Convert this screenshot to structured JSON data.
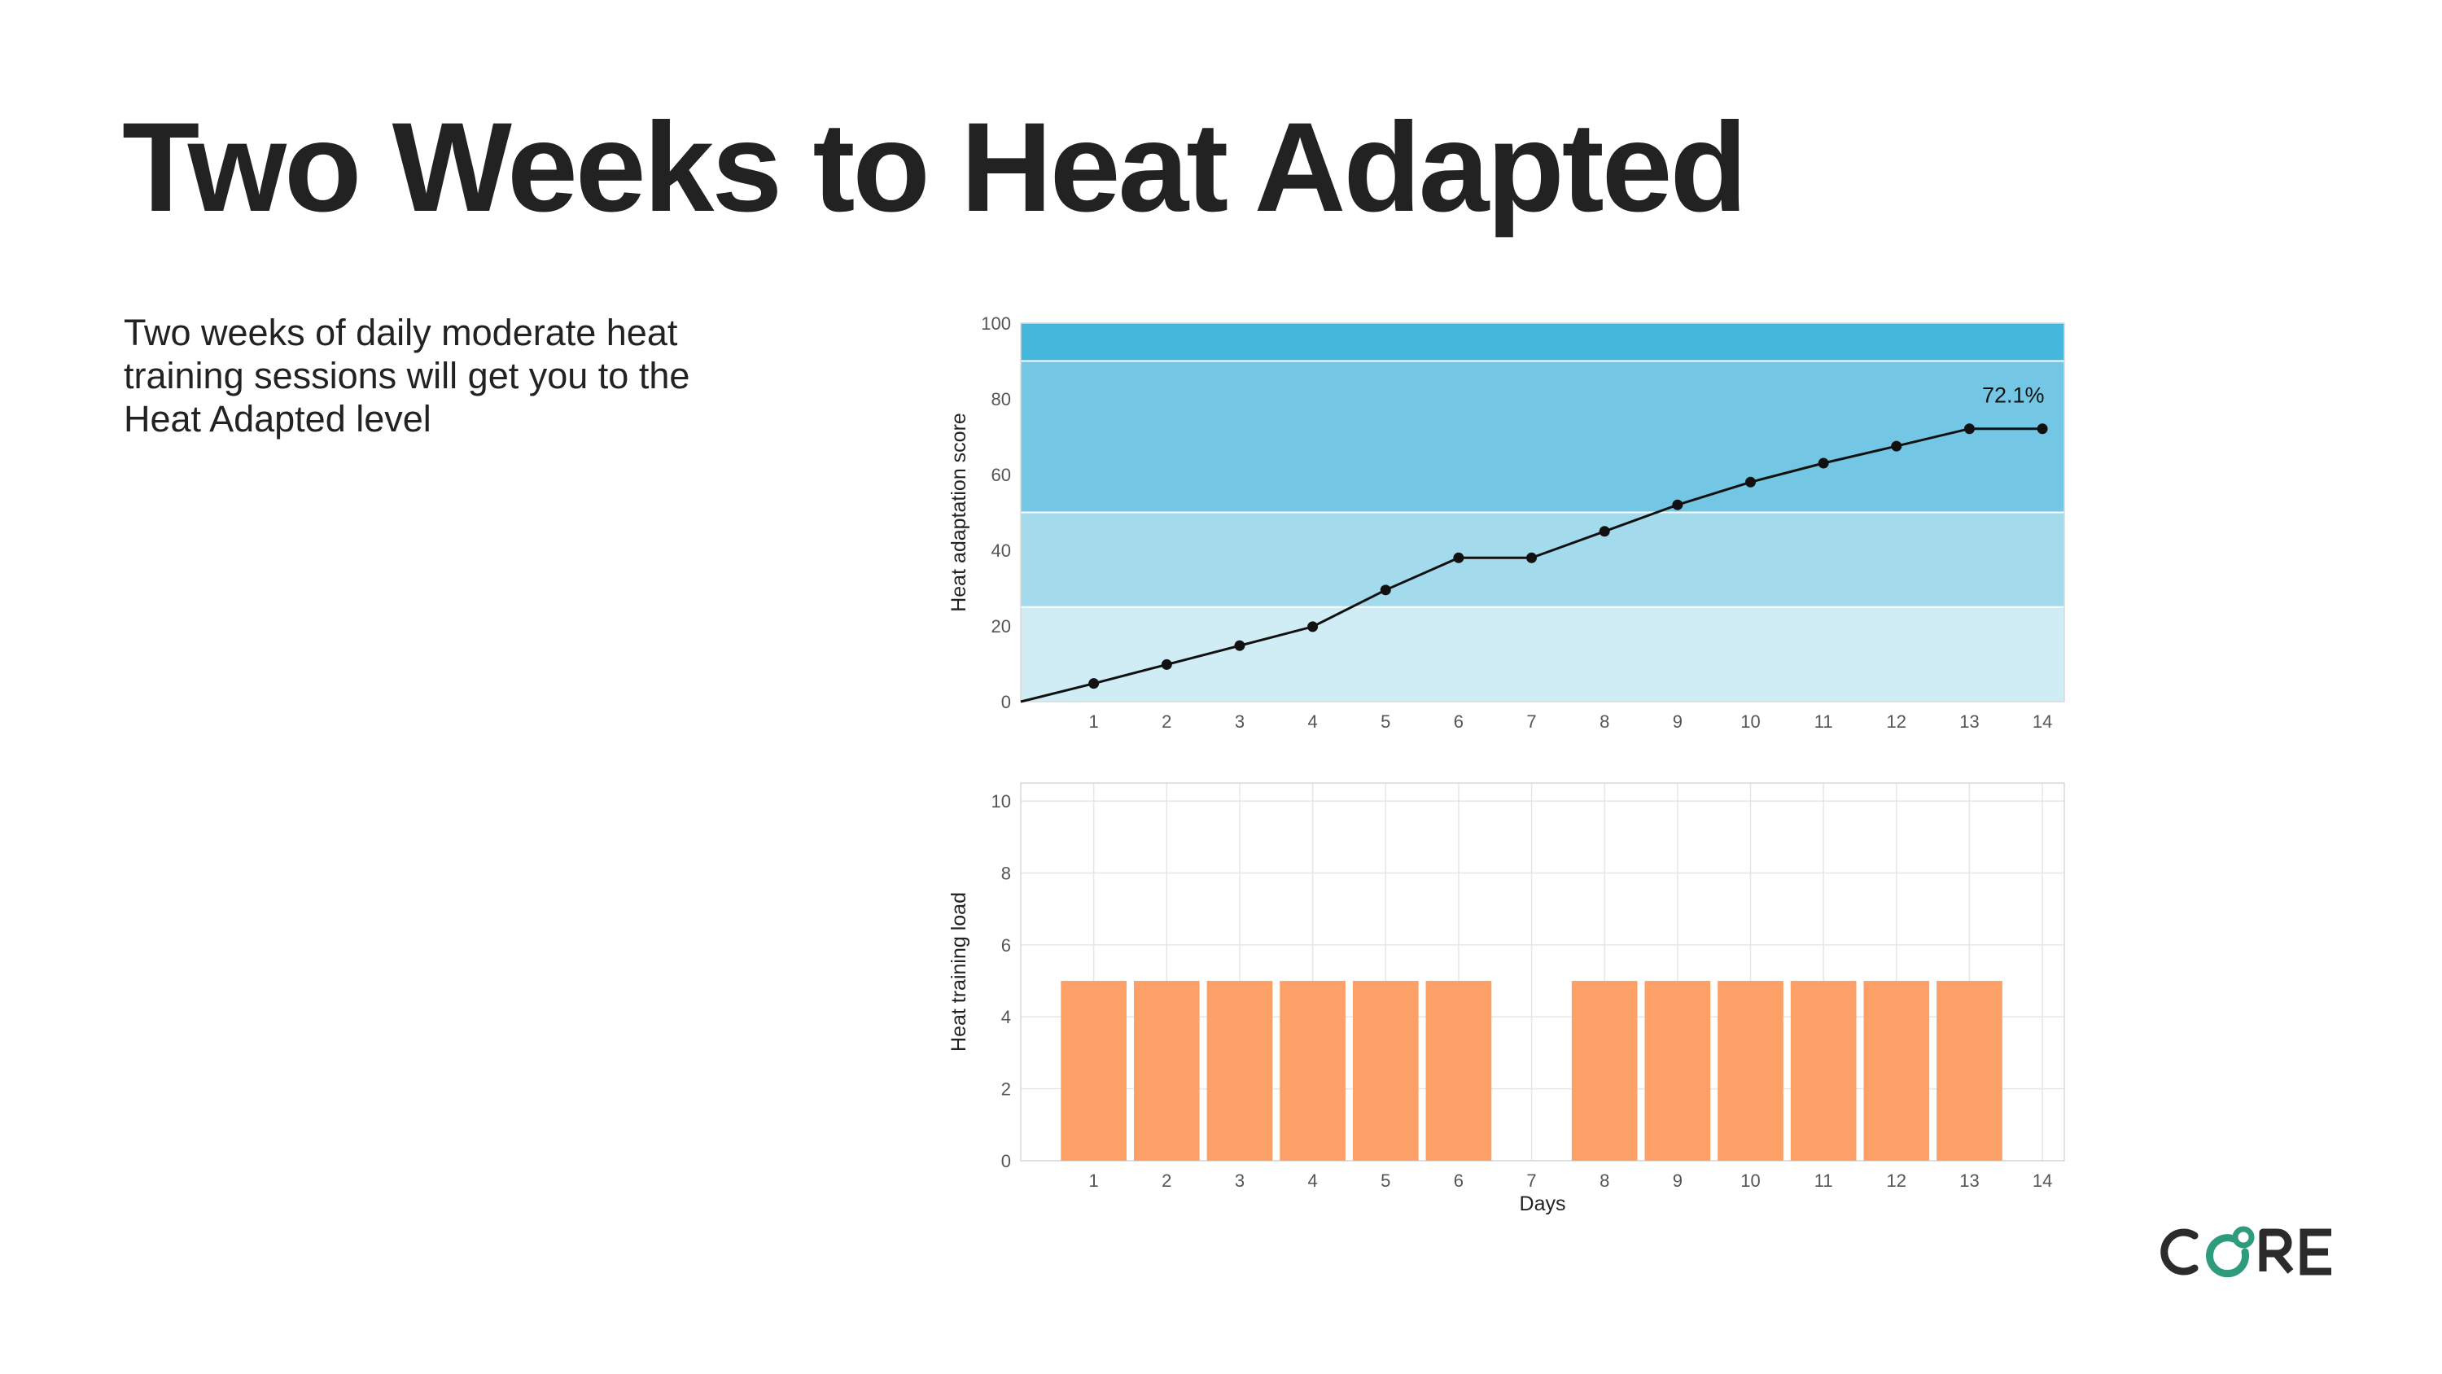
{
  "header": {
    "title": "Two Weeks to Heat Adapted",
    "description": "Two weeks of daily moderate heat training sessions will get you to the Heat Adapted level"
  },
  "brand": {
    "logo_text": "CORE",
    "dark_color": "#2b2b2b",
    "accent_color": "#2e9b7c"
  },
  "chart_data": [
    {
      "type": "line",
      "title": "",
      "xlabel": "",
      "ylabel": "Heat adaptation score",
      "x": [
        0,
        1,
        2,
        3,
        4,
        5,
        6,
        7,
        8,
        9,
        10,
        11,
        12,
        13,
        14
      ],
      "x_tick_labels": [
        "1",
        "2",
        "3",
        "4",
        "5",
        "6",
        "7",
        "8",
        "9",
        "10",
        "11",
        "12",
        "13",
        "14"
      ],
      "y_tick_labels": [
        "0",
        "20",
        "40",
        "60",
        "80",
        "100"
      ],
      "series": [
        {
          "name": "Heat adaptation score",
          "values": [
            0,
            4.8,
            9.8,
            14.8,
            19.8,
            29.5,
            38,
            38,
            45,
            52,
            58,
            63,
            67.5,
            72.1,
            72.1
          ],
          "color": "#111111"
        }
      ],
      "xlim": [
        0,
        14.3
      ],
      "ylim": [
        0,
        100
      ],
      "bands": [
        {
          "from": 0,
          "to": 25,
          "color": "#d0ecf4"
        },
        {
          "from": 25,
          "to": 50,
          "color": "#a3dbed"
        },
        {
          "from": 50,
          "to": 90,
          "color": "#74c7e4"
        },
        {
          "from": 90,
          "to": 100,
          "color": "#45b7dc"
        }
      ],
      "annotations": [
        {
          "x": 13.6,
          "y": 79,
          "text": "72.1%"
        }
      ],
      "grid": false
    },
    {
      "type": "bar",
      "title": "",
      "xlabel": "Days",
      "ylabel": "Heat training load",
      "categories": [
        "1",
        "2",
        "3",
        "4",
        "5",
        "6",
        "7",
        "8",
        "9",
        "10",
        "11",
        "12",
        "13",
        "14"
      ],
      "values": [
        5,
        5,
        5,
        5,
        5,
        5,
        0,
        5,
        5,
        5,
        5,
        5,
        5,
        0
      ],
      "y_tick_labels": [
        "0",
        "2",
        "4",
        "6",
        "8",
        "10"
      ],
      "xlim": [
        0,
        14.3
      ],
      "ylim": [
        0,
        10.5
      ],
      "bar_color": "#fca068",
      "grid": true
    }
  ]
}
